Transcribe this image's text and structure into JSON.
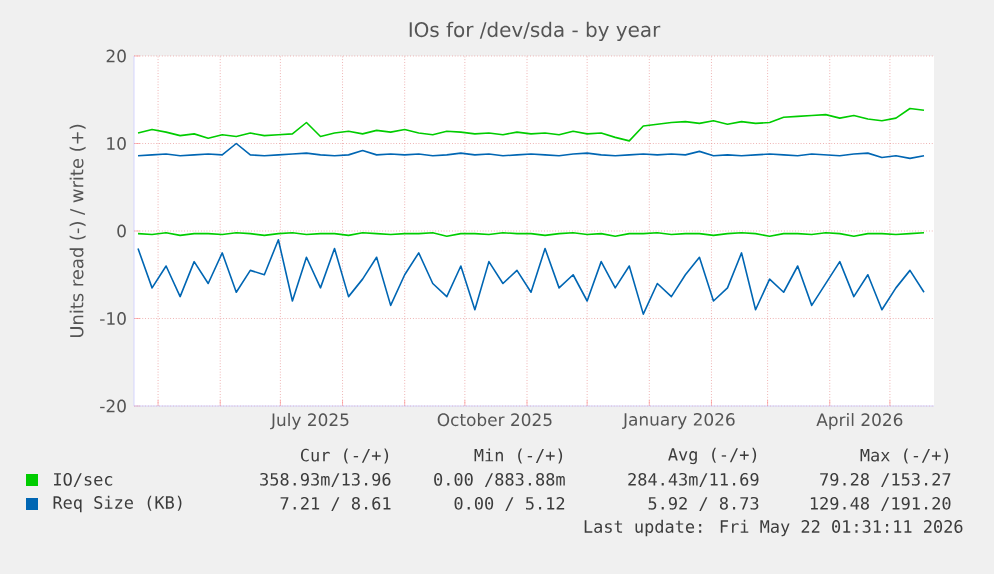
{
  "chart_data": {
    "type": "line",
    "title": "IOs for /dev/sda - by year",
    "ylabel": "Units read (-) / write (+)",
    "xlim": [
      "2025-04-19",
      "2026-05-23"
    ],
    "ylim": [
      -20,
      20
    ],
    "yticks": [
      -20,
      -10,
      0,
      10,
      20
    ],
    "xticks": [
      {
        "value": "2025-05-01",
        "label": null
      },
      {
        "value": "2025-06-01",
        "label": null
      },
      {
        "value": "2025-07-01",
        "label": null
      },
      {
        "value": "2025-08-01",
        "label": null
      },
      {
        "value": "2025-09-01",
        "label": null
      },
      {
        "value": "2025-10-01",
        "label": null
      },
      {
        "value": "2025-11-01",
        "label": null
      },
      {
        "value": "2025-12-01",
        "label": null
      },
      {
        "value": "2026-01-01",
        "label": null
      },
      {
        "value": "2026-02-01",
        "label": null
      },
      {
        "value": "2026-03-01",
        "label": null
      },
      {
        "value": "2026-04-01",
        "label": null
      },
      {
        "value": "2026-05-01",
        "label": null
      },
      {
        "value": "2025-07-16",
        "label": "July 2025"
      },
      {
        "value": "2025-10-16",
        "label": "October 2025"
      },
      {
        "value": "2026-01-16",
        "label": "January 2026"
      },
      {
        "value": "2026-04-16",
        "label": "April 2026"
      }
    ],
    "grid": true,
    "legend": "bottom",
    "marker": "none",
    "line_style": "solid",
    "x": [
      "2025-04-21",
      "2025-04-28",
      "2025-05-05",
      "2025-05-12",
      "2025-05-19",
      "2025-05-26",
      "2025-06-02",
      "2025-06-09",
      "2025-06-16",
      "2025-06-23",
      "2025-06-30",
      "2025-07-07",
      "2025-07-14",
      "2025-07-21",
      "2025-07-28",
      "2025-08-04",
      "2025-08-11",
      "2025-08-18",
      "2025-08-25",
      "2025-09-01",
      "2025-09-08",
      "2025-09-15",
      "2025-09-22",
      "2025-09-29",
      "2025-10-06",
      "2025-10-13",
      "2025-10-20",
      "2025-10-27",
      "2025-11-03",
      "2025-11-10",
      "2025-11-17",
      "2025-11-24",
      "2025-12-01",
      "2025-12-08",
      "2025-12-15",
      "2025-12-22",
      "2025-12-29",
      "2026-01-05",
      "2026-01-12",
      "2026-01-19",
      "2026-01-26",
      "2026-02-02",
      "2026-02-09",
      "2026-02-16",
      "2026-02-23",
      "2026-03-02",
      "2026-03-09",
      "2026-03-16",
      "2026-03-23",
      "2026-03-30",
      "2026-04-06",
      "2026-04-13",
      "2026-04-20",
      "2026-04-27",
      "2026-05-04",
      "2026-05-11",
      "2026-05-18"
    ],
    "series": [
      {
        "name": "IO/sec",
        "color": "#00cc00",
        "values": [
          11.2,
          11.6,
          11.3,
          10.9,
          11.1,
          10.6,
          11.0,
          10.8,
          11.2,
          10.9,
          11.0,
          11.1,
          12.4,
          10.8,
          11.2,
          11.4,
          11.1,
          11.5,
          11.3,
          11.6,
          11.2,
          11.0,
          11.4,
          11.3,
          11.1,
          11.2,
          11.0,
          11.3,
          11.1,
          11.2,
          11.0,
          11.4,
          11.1,
          11.2,
          10.7,
          10.3,
          12.0,
          12.2,
          12.4,
          12.5,
          12.3,
          12.6,
          12.2,
          12.5,
          12.3,
          12.4,
          13.0,
          13.1,
          13.2,
          13.3,
          12.9,
          13.2,
          12.8,
          12.6,
          12.9,
          14.0,
          13.8
        ]
      },
      {
        "color": "#00cc00",
        "values": [
          -0.3,
          -0.4,
          -0.2,
          -0.5,
          -0.3,
          -0.3,
          -0.4,
          -0.2,
          -0.3,
          -0.5,
          -0.3,
          -0.2,
          -0.4,
          -0.3,
          -0.3,
          -0.5,
          -0.2,
          -0.3,
          -0.4,
          -0.3,
          -0.3,
          -0.2,
          -0.6,
          -0.3,
          -0.3,
          -0.4,
          -0.2,
          -0.3,
          -0.3,
          -0.5,
          -0.3,
          -0.2,
          -0.4,
          -0.3,
          -0.6,
          -0.3,
          -0.3,
          -0.2,
          -0.4,
          -0.3,
          -0.3,
          -0.5,
          -0.3,
          -0.2,
          -0.3,
          -0.6,
          -0.3,
          -0.3,
          -0.4,
          -0.2,
          -0.3,
          -0.6,
          -0.3,
          -0.3,
          -0.4,
          -0.3,
          -0.2
        ]
      },
      {
        "name": "Req Size (KB)",
        "color": "#0066b3",
        "values": [
          8.6,
          8.7,
          8.8,
          8.6,
          8.7,
          8.8,
          8.7,
          10.0,
          8.7,
          8.6,
          8.7,
          8.8,
          8.9,
          8.7,
          8.6,
          8.7,
          9.2,
          8.7,
          8.8,
          8.7,
          8.8,
          8.6,
          8.7,
          8.9,
          8.7,
          8.8,
          8.6,
          8.7,
          8.8,
          8.7,
          8.6,
          8.8,
          8.9,
          8.7,
          8.6,
          8.7,
          8.8,
          8.7,
          8.8,
          8.7,
          9.1,
          8.6,
          8.7,
          8.6,
          8.7,
          8.8,
          8.7,
          8.6,
          8.8,
          8.7,
          8.6,
          8.8,
          8.9,
          8.4,
          8.6,
          8.3,
          8.6
        ]
      },
      {
        "color": "#0066b3",
        "values": [
          -2.0,
          -6.5,
          -4.0,
          -7.5,
          -3.5,
          -6.0,
          -2.5,
          -7.0,
          -4.5,
          -5.0,
          -1.0,
          -8.0,
          -3.0,
          -6.5,
          -2.0,
          -7.5,
          -5.5,
          -3.0,
          -8.5,
          -5.0,
          -2.5,
          -6.0,
          -7.5,
          -4.0,
          -9.0,
          -3.5,
          -6.0,
          -4.5,
          -7.0,
          -2.0,
          -6.5,
          -5.0,
          -8.0,
          -3.5,
          -6.5,
          -4.0,
          -9.5,
          -6.0,
          -7.5,
          -5.0,
          -3.0,
          -8.0,
          -6.5,
          -2.5,
          -9.0,
          -5.5,
          -7.0,
          -4.0,
          -8.5,
          -6.0,
          -3.5,
          -7.5,
          -5.0,
          -9.0,
          -6.5,
          -4.5,
          -7.0
        ]
      }
    ],
    "annotations": [
      "Cur (-/+)",
      "Min (-/+)",
      "Avg (-/+)",
      "Max (-/+)",
      "358.93m/13.96",
      "0.00 /883.88m",
      "284.43m/11.69",
      "79.28 /153.27",
      "7.21 / 8.61",
      "0.00 / 5.12",
      "5.92 / 8.73",
      "129.48 /191.20",
      "Last update: Fri May 22 01:31:11 2026"
    ]
  }
}
